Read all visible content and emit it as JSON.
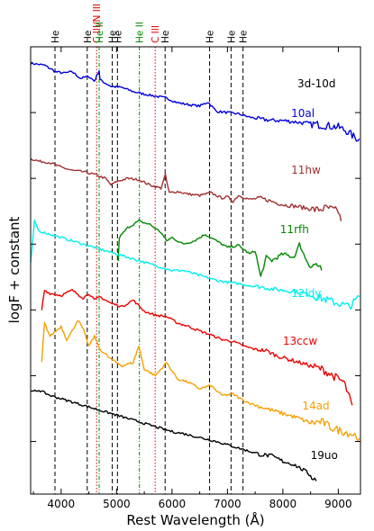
{
  "chart_data": {
    "type": "line",
    "title": "3d-10d",
    "xlabel": "Rest Wavelength (Å)",
    "ylabel": "logF + constant",
    "xlim": [
      3450,
      9400
    ],
    "xticks": [
      4000,
      5000,
      6000,
      7000,
      8000,
      9000
    ],
    "grid": false,
    "legend": "none",
    "line_ids": [
      {
        "label": "He",
        "wavelength": 3889,
        "color": "#000000",
        "style": "dashed"
      },
      {
        "label": "He",
        "wavelength": 4471,
        "color": "#000000",
        "style": "dashed"
      },
      {
        "label": "C III/N III",
        "wavelength": 4640,
        "color": "#dd0000",
        "style": "dotted"
      },
      {
        "label": "He II",
        "wavelength": 4686,
        "color": "#008800",
        "style": "dashdot"
      },
      {
        "label": "He",
        "wavelength": 4922,
        "color": "#000000",
        "style": "dashed"
      },
      {
        "label": "He",
        "wavelength": 5016,
        "color": "#000000",
        "style": "dashed"
      },
      {
        "label": "He II",
        "wavelength": 5412,
        "color": "#008800",
        "style": "dashdot"
      },
      {
        "label": "C III",
        "wavelength": 5696,
        "color": "#dd0000",
        "style": "dotted"
      },
      {
        "label": "He",
        "wavelength": 5876,
        "color": "#000000",
        "style": "dashed"
      },
      {
        "label": "He",
        "wavelength": 6678,
        "color": "#000000",
        "style": "dashed"
      },
      {
        "label": "He",
        "wavelength": 7065,
        "color": "#000000",
        "style": "dashed"
      },
      {
        "label": "He",
        "wavelength": 7281,
        "color": "#000000",
        "style": "dashed"
      }
    ],
    "series": [
      {
        "name": "10al",
        "color": "#0000dd",
        "label_x": 8150,
        "x": [
          3450,
          3700,
          3900,
          4050,
          4200,
          4350,
          4500,
          4600,
          4686,
          4700,
          4750,
          4900,
          5100,
          5300,
          5500,
          5700,
          5900,
          6100,
          6300,
          6500,
          6650,
          6800,
          7000,
          7200,
          7400,
          7600,
          7800,
          8000,
          8200,
          8400,
          8600,
          8800,
          9000,
          9150,
          9300,
          9380
        ],
        "y": [
          9.75,
          9.72,
          9.62,
          9.6,
          9.62,
          9.52,
          9.55,
          9.48,
          9.64,
          9.5,
          9.47,
          9.4,
          9.38,
          9.32,
          9.28,
          9.25,
          9.22,
          9.15,
          9.12,
          9.1,
          9.16,
          9.02,
          9.0,
          8.98,
          8.93,
          8.9,
          8.88,
          8.88,
          8.86,
          8.84,
          8.82,
          8.8,
          8.78,
          8.72,
          8.62,
          8.6
        ]
      },
      {
        "name": "11hw",
        "color": "#a03030",
        "label_x": 8150,
        "x": [
          3450,
          3600,
          3800,
          4000,
          4200,
          4400,
          4600,
          4800,
          4900,
          5000,
          5200,
          5400,
          5600,
          5800,
          5880,
          5950,
          6100,
          6300,
          6500,
          6700,
          6900,
          7000,
          7100,
          7200,
          7400,
          7600,
          7800,
          8000,
          8200,
          8400,
          8600,
          8800,
          9000,
          9050
        ],
        "y": [
          8.3,
          8.26,
          8.24,
          8.17,
          8.12,
          8.1,
          8.06,
          8.0,
          7.9,
          7.95,
          8.0,
          7.98,
          7.9,
          7.85,
          8.05,
          7.78,
          7.8,
          7.76,
          7.74,
          7.78,
          7.7,
          7.72,
          7.65,
          7.74,
          7.68,
          7.7,
          7.65,
          7.6,
          7.58,
          7.55,
          7.52,
          7.55,
          7.5,
          7.35
        ]
      },
      {
        "name": "11rfh",
        "color": "#008800",
        "label_x": 7950,
        "x": [
          5030,
          5050,
          5200,
          5400,
          5600,
          5800,
          5900,
          6000,
          6200,
          6400,
          6600,
          6800,
          7000,
          7200,
          7400,
          7500,
          7600,
          7700,
          7800,
          8000,
          8200,
          8300,
          8400,
          8500,
          8600,
          8700
        ],
        "y": [
          6.75,
          7.1,
          7.25,
          7.35,
          7.3,
          7.18,
          7.05,
          7.1,
          7.0,
          7.05,
          7.15,
          7.05,
          6.95,
          6.98,
          6.85,
          6.9,
          6.5,
          6.8,
          6.75,
          6.85,
          6.8,
          7.0,
          6.8,
          6.65,
          6.7,
          6.6
        ]
      },
      {
        "name": "12ldy",
        "color": "#00eeee",
        "label_x": 8150,
        "x": [
          3450,
          3520,
          3600,
          3800,
          4000,
          4200,
          4400,
          4600,
          4800,
          5000,
          5200,
          5400,
          5600,
          5800,
          6000,
          6200,
          6400,
          6600,
          6800,
          7000,
          7200,
          7400,
          7600,
          7800,
          8000,
          8200,
          8400,
          8600,
          8800,
          9000,
          9200,
          9380
        ],
        "y": [
          6.7,
          7.35,
          7.2,
          7.15,
          7.1,
          7.05,
          7.0,
          6.95,
          6.9,
          6.85,
          6.8,
          6.75,
          6.7,
          6.65,
          6.6,
          6.6,
          6.55,
          6.5,
          6.45,
          6.42,
          6.4,
          6.37,
          6.35,
          6.32,
          6.3,
          6.28,
          6.25,
          6.2,
          6.15,
          6.1,
          6.05,
          6.2
        ]
      },
      {
        "name": "13ccw",
        "color": "#ee0000",
        "label_x": 8000,
        "x": [
          3650,
          3700,
          3800,
          4000,
          4200,
          4400,
          4500,
          4600,
          4700,
          4900,
          5100,
          5300,
          5500,
          5700,
          5900,
          6100,
          6300,
          6500,
          6700,
          6900,
          7100,
          7300,
          7500,
          7700,
          7900,
          8100,
          8300,
          8500,
          8700,
          8900,
          9100,
          9250
        ],
        "y": [
          6.0,
          6.3,
          6.25,
          6.22,
          6.3,
          6.18,
          6.25,
          6.15,
          6.2,
          6.1,
          6.05,
          6.15,
          5.98,
          5.92,
          5.9,
          5.8,
          5.75,
          5.68,
          5.62,
          5.55,
          5.52,
          5.45,
          5.4,
          5.38,
          5.3,
          5.25,
          5.2,
          5.15,
          5.1,
          5.0,
          4.9,
          4.55
        ]
      },
      {
        "name": "14ad",
        "color": "#f5a000",
        "label_x": 8350,
        "x": [
          3650,
          3700,
          3800,
          4000,
          4100,
          4200,
          4300,
          4400,
          4500,
          4600,
          4700,
          4900,
          5100,
          5300,
          5400,
          5500,
          5700,
          5900,
          6100,
          6300,
          6500,
          6700,
          6900,
          7100,
          7300,
          7500,
          7700,
          7900,
          8100,
          8300,
          8500,
          8700,
          8900,
          9100,
          9300,
          9380
        ],
        "y": [
          5.2,
          5.8,
          5.6,
          5.75,
          5.55,
          5.68,
          5.85,
          5.7,
          5.45,
          5.6,
          5.4,
          5.25,
          5.15,
          5.2,
          5.45,
          5.1,
          5.0,
          5.2,
          4.95,
          4.9,
          4.8,
          4.85,
          4.7,
          4.72,
          4.62,
          4.55,
          4.5,
          4.45,
          4.4,
          4.35,
          4.28,
          4.3,
          4.2,
          4.15,
          4.1,
          4.05
        ]
      },
      {
        "name": "19uo",
        "color": "#000000",
        "label_x": 8500,
        "x": [
          3450,
          3600,
          3800,
          4000,
          4200,
          4400,
          4600,
          4800,
          5000,
          5200,
          5400,
          5600,
          5800,
          6000,
          6200,
          6400,
          6600,
          6800,
          7000,
          7200,
          7400,
          7600,
          7800,
          8000,
          8200,
          8400,
          8550,
          8600
        ],
        "y": [
          4.75,
          4.78,
          4.7,
          4.65,
          4.6,
          4.55,
          4.5,
          4.45,
          4.4,
          4.35,
          4.3,
          4.25,
          4.2,
          4.15,
          4.12,
          4.08,
          4.04,
          4.0,
          3.95,
          3.9,
          3.85,
          3.8,
          3.78,
          3.7,
          3.65,
          3.55,
          3.45,
          3.4
        ]
      }
    ]
  }
}
